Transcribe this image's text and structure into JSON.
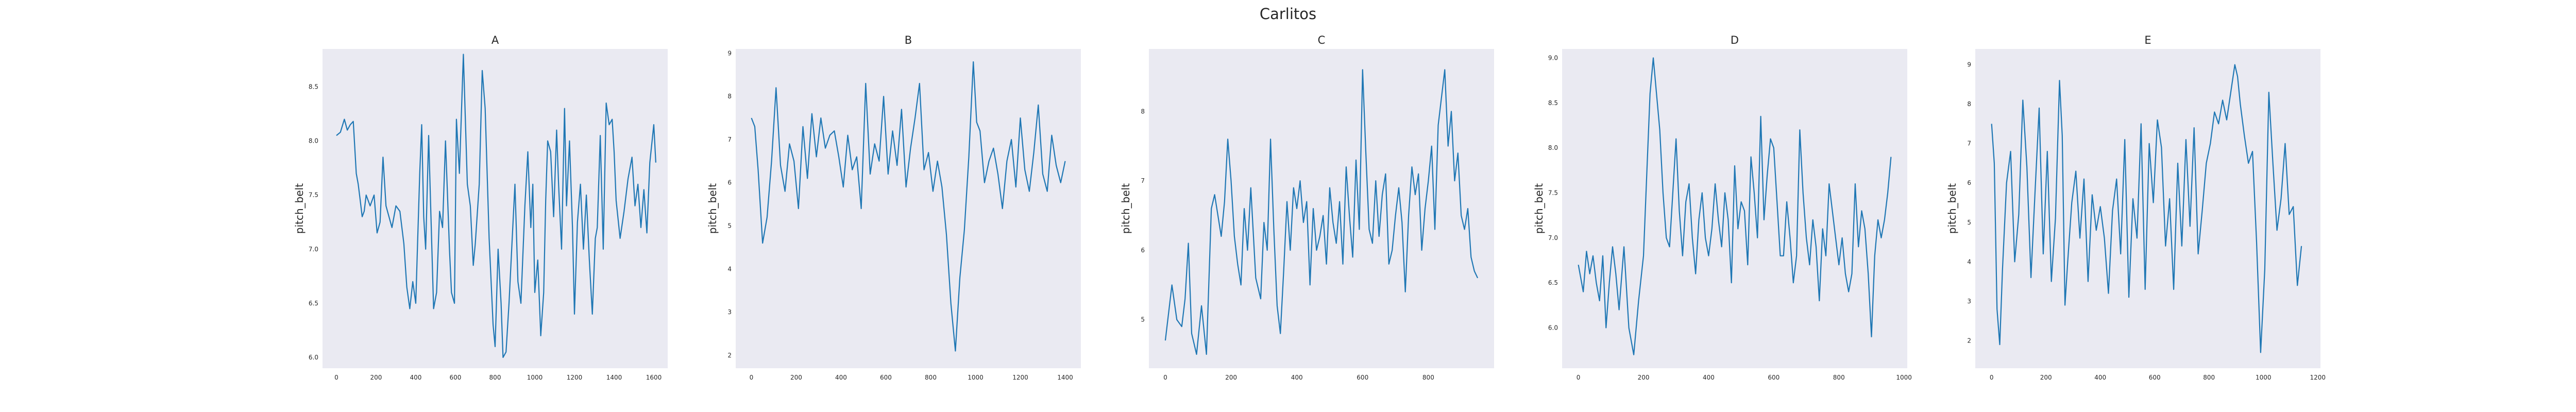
{
  "figure": {
    "title": "Carlitos"
  },
  "style": {
    "axes_bg": "#eaeaf2",
    "line_color": "#1f77b4",
    "text_color": "#262626"
  },
  "chart_data": [
    {
      "type": "line",
      "title": "A",
      "xlabel": "",
      "ylabel": "pitch_belt",
      "xlim": [
        -70,
        1670
      ],
      "ylim": [
        5.9,
        8.85
      ],
      "xticks": [
        0,
        200,
        400,
        600,
        800,
        1000,
        1200,
        1400,
        1600
      ],
      "yticks": [
        6.0,
        6.5,
        7.0,
        7.5,
        8.0,
        8.5
      ],
      "grid": false,
      "legend": "none",
      "series": [
        {
          "x": [
            0,
            20,
            40,
            55,
            70,
            85,
            100,
            110,
            120,
            130,
            140,
            150,
            170,
            190,
            205,
            220,
            235,
            250,
            265,
            280,
            300,
            320,
            340,
            355,
            370,
            385,
            400,
            410,
            420,
            430,
            440,
            450,
            465,
            475,
            490,
            505,
            520,
            535,
            550,
            560,
            570,
            580,
            595,
            605,
            620,
            640,
            660,
            675,
            690,
            700,
            720,
            735,
            750,
            770,
            790,
            800,
            815,
            830,
            840,
            855,
            870,
            885,
            900,
            915,
            930,
            950,
            965,
            980,
            990,
            1000,
            1015,
            1030,
            1045,
            1055,
            1065,
            1080,
            1095,
            1110,
            1120,
            1135,
            1150,
            1160,
            1175,
            1190,
            1200,
            1215,
            1230,
            1245,
            1260,
            1275,
            1290,
            1305,
            1315,
            1330,
            1345,
            1360,
            1375,
            1390,
            1400,
            1410,
            1430,
            1450,
            1470,
            1490,
            1505,
            1520,
            1535,
            1550,
            1565,
            1580,
            1600,
            1610
          ],
          "y": [
            8.05,
            8.08,
            8.2,
            8.1,
            8.15,
            8.18,
            7.7,
            7.6,
            7.45,
            7.3,
            7.35,
            7.5,
            7.4,
            7.5,
            7.15,
            7.25,
            7.85,
            7.4,
            7.3,
            7.2,
            7.4,
            7.35,
            7.05,
            6.65,
            6.45,
            6.7,
            6.5,
            7.1,
            7.7,
            8.15,
            7.3,
            7.0,
            8.05,
            7.4,
            6.45,
            6.6,
            7.35,
            7.2,
            8.0,
            7.5,
            7.0,
            6.6,
            6.5,
            8.2,
            7.7,
            8.8,
            7.6,
            7.4,
            6.85,
            7.05,
            7.6,
            8.65,
            8.3,
            7.1,
            6.3,
            6.1,
            7.0,
            6.5,
            6.0,
            6.05,
            6.5,
            7.05,
            7.6,
            6.7,
            6.5,
            7.4,
            7.9,
            7.2,
            7.6,
            6.6,
            6.9,
            6.2,
            6.6,
            7.45,
            8.0,
            7.9,
            7.3,
            8.1,
            7.6,
            7.0,
            8.3,
            7.4,
            8.0,
            7.2,
            6.4,
            7.25,
            7.6,
            7.0,
            7.5,
            6.9,
            6.4,
            7.1,
            7.2,
            8.05,
            7.0,
            8.35,
            8.15,
            8.2,
            7.9,
            7.45,
            7.1,
            7.35,
            7.65,
            7.85,
            7.4,
            7.6,
            7.2,
            7.55,
            7.15,
            7.8,
            8.15,
            7.8
          ]
        }
      ]
    },
    {
      "type": "line",
      "title": "B",
      "xlabel": "",
      "ylabel": "pitch_belt",
      "xlim": [
        -70,
        1470
      ],
      "ylim": [
        1.7,
        9.1
      ],
      "xticks": [
        0,
        200,
        400,
        600,
        800,
        1000,
        1200,
        1400
      ],
      "yticks": [
        2,
        3,
        4,
        5,
        6,
        7,
        8,
        9
      ],
      "grid": false,
      "legend": "none",
      "series": [
        {
          "x": [
            0,
            15,
            30,
            50,
            70,
            90,
            110,
            130,
            150,
            170,
            190,
            210,
            230,
            250,
            270,
            290,
            310,
            330,
            350,
            370,
            390,
            410,
            430,
            450,
            470,
            490,
            510,
            530,
            550,
            570,
            590,
            610,
            630,
            650,
            670,
            690,
            710,
            730,
            750,
            770,
            790,
            810,
            830,
            850,
            870,
            890,
            910,
            930,
            950,
            970,
            990,
            1005,
            1020,
            1040,
            1060,
            1080,
            1100,
            1120,
            1140,
            1160,
            1180,
            1200,
            1220,
            1240,
            1260,
            1280,
            1300,
            1320,
            1340,
            1360,
            1380,
            1400
          ],
          "y": [
            7.5,
            7.3,
            6.3,
            4.6,
            5.2,
            6.5,
            8.2,
            6.4,
            5.8,
            6.9,
            6.5,
            5.4,
            7.3,
            6.1,
            7.6,
            6.6,
            7.5,
            6.8,
            7.1,
            7.2,
            6.6,
            5.9,
            7.1,
            6.3,
            6.6,
            5.4,
            8.3,
            6.2,
            6.9,
            6.5,
            8.0,
            6.2,
            7.2,
            6.4,
            7.7,
            5.9,
            6.8,
            7.5,
            8.3,
            6.3,
            6.7,
            5.8,
            6.5,
            5.9,
            4.8,
            3.2,
            2.1,
            3.8,
            4.9,
            6.6,
            8.8,
            7.4,
            7.2,
            6.0,
            6.5,
            6.8,
            6.2,
            5.4,
            6.5,
            7.0,
            5.9,
            7.5,
            6.3,
            5.8,
            6.7,
            7.8,
            6.2,
            5.8,
            7.1,
            6.4,
            6.0,
            6.5
          ]
        }
      ]
    },
    {
      "type": "line",
      "title": "C",
      "xlabel": "",
      "ylabel": "pitch_belt",
      "xlim": [
        -50,
        1000
      ],
      "ylim": [
        4.3,
        8.9
      ],
      "xticks": [
        0,
        200,
        400,
        600,
        800
      ],
      "yticks": [
        5,
        6,
        7,
        8
      ],
      "grid": false,
      "legend": "none",
      "series": [
        {
          "x": [
            0,
            10,
            20,
            35,
            50,
            60,
            70,
            80,
            95,
            110,
            125,
            140,
            150,
            160,
            170,
            180,
            190,
            200,
            210,
            220,
            230,
            240,
            250,
            260,
            275,
            290,
            300,
            310,
            320,
            330,
            340,
            350,
            360,
            370,
            380,
            390,
            400,
            410,
            420,
            430,
            440,
            450,
            460,
            470,
            480,
            490,
            500,
            510,
            520,
            530,
            540,
            550,
            560,
            570,
            580,
            590,
            600,
            610,
            620,
            630,
            640,
            650,
            660,
            670,
            680,
            690,
            700,
            710,
            720,
            730,
            740,
            750,
            760,
            770,
            780,
            790,
            800,
            810,
            820,
            830,
            840,
            850,
            860,
            870,
            880,
            890,
            900,
            910,
            920,
            930,
            940,
            950
          ],
          "y": [
            4.7,
            5.1,
            5.5,
            5.0,
            4.9,
            5.3,
            6.1,
            4.8,
            4.5,
            5.2,
            4.5,
            6.6,
            6.8,
            6.5,
            6.2,
            6.7,
            7.6,
            7.0,
            6.2,
            5.8,
            5.5,
            6.6,
            6.0,
            6.9,
            5.6,
            5.3,
            6.4,
            6.0,
            7.6,
            6.3,
            5.2,
            4.8,
            5.7,
            6.7,
            6.0,
            6.9,
            6.6,
            7.0,
            6.4,
            6.7,
            5.5,
            6.6,
            6.0,
            6.2,
            6.5,
            5.8,
            6.9,
            6.4,
            6.1,
            6.7,
            5.8,
            7.2,
            6.5,
            5.9,
            7.3,
            6.3,
            8.6,
            7.4,
            6.3,
            6.1,
            7.0,
            6.2,
            6.8,
            7.1,
            5.8,
            6.0,
            6.5,
            6.9,
            6.4,
            5.4,
            6.5,
            7.2,
            6.8,
            7.1,
            6.0,
            6.6,
            7.0,
            7.5,
            6.3,
            7.8,
            8.2,
            8.6,
            7.5,
            8.0,
            7.0,
            7.4,
            6.5,
            6.3,
            6.6,
            5.9,
            5.7,
            5.6
          ]
        }
      ]
    },
    {
      "type": "line",
      "title": "D",
      "xlabel": "",
      "ylabel": "pitch_belt",
      "xlim": [
        -50,
        1010
      ],
      "ylim": [
        5.55,
        9.1
      ],
      "xticks": [
        0,
        200,
        400,
        600,
        800,
        1000
      ],
      "yticks": [
        6.0,
        6.5,
        7.0,
        7.5,
        8.0,
        8.5,
        9.0
      ],
      "grid": false,
      "legend": "none",
      "series": [
        {
          "x": [
            0,
            15,
            25,
            35,
            45,
            55,
            65,
            75,
            85,
            95,
            105,
            115,
            125,
            140,
            155,
            170,
            185,
            200,
            210,
            220,
            230,
            240,
            250,
            260,
            270,
            280,
            290,
            300,
            310,
            320,
            330,
            340,
            350,
            360,
            370,
            380,
            390,
            400,
            410,
            420,
            430,
            440,
            450,
            460,
            470,
            480,
            490,
            500,
            510,
            520,
            530,
            540,
            550,
            560,
            570,
            580,
            590,
            600,
            610,
            620,
            630,
            640,
            650,
            660,
            670,
            680,
            690,
            700,
            710,
            720,
            730,
            740,
            750,
            760,
            770,
            780,
            790,
            800,
            810,
            820,
            830,
            840,
            850,
            860,
            870,
            880,
            890,
            900,
            910,
            920,
            930,
            940,
            950,
            960
          ],
          "y": [
            6.7,
            6.4,
            6.85,
            6.6,
            6.8,
            6.5,
            6.3,
            6.8,
            6.0,
            6.5,
            6.9,
            6.6,
            6.2,
            6.9,
            6.0,
            5.7,
            6.3,
            6.8,
            7.7,
            8.6,
            9.0,
            8.6,
            8.2,
            7.5,
            7.0,
            6.9,
            7.5,
            8.1,
            7.3,
            6.8,
            7.4,
            7.6,
            7.0,
            6.6,
            7.2,
            7.5,
            7.0,
            6.8,
            7.1,
            7.6,
            7.2,
            6.9,
            7.5,
            7.2,
            6.5,
            7.8,
            7.1,
            7.4,
            7.3,
            6.7,
            7.9,
            7.5,
            7.0,
            8.35,
            7.2,
            7.7,
            8.1,
            8.0,
            7.4,
            6.8,
            6.8,
            7.4,
            7.0,
            6.5,
            6.8,
            8.2,
            7.5,
            7.0,
            6.7,
            7.2,
            6.9,
            6.3,
            7.1,
            6.8,
            7.6,
            7.3,
            7.0,
            6.7,
            7.0,
            6.6,
            6.4,
            6.6,
            7.6,
            6.9,
            7.3,
            7.1,
            6.6,
            5.9,
            6.8,
            7.2,
            7.0,
            7.2,
            7.5,
            7.9
          ]
        }
      ]
    },
    {
      "type": "line",
      "title": "E",
      "xlabel": "",
      "ylabel": "pitch_belt",
      "xlim": [
        -60,
        1210
      ],
      "ylim": [
        1.3,
        9.4
      ],
      "xticks": [
        0,
        200,
        400,
        600,
        800,
        1000,
        1200
      ],
      "yticks": [
        2,
        3,
        4,
        5,
        6,
        7,
        8,
        9
      ],
      "grid": false,
      "legend": "none",
      "series": [
        {
          "x": [
            0,
            10,
            20,
            30,
            40,
            55,
            70,
            85,
            100,
            115,
            130,
            145,
            160,
            175,
            190,
            205,
            220,
            235,
            250,
            260,
            270,
            280,
            295,
            310,
            325,
            340,
            355,
            370,
            385,
            400,
            415,
            430,
            445,
            460,
            475,
            490,
            505,
            520,
            535,
            550,
            565,
            580,
            595,
            610,
            625,
            640,
            655,
            670,
            685,
            700,
            715,
            730,
            745,
            760,
            775,
            790,
            805,
            820,
            835,
            850,
            865,
            880,
            895,
            905,
            915,
            930,
            945,
            960,
            975,
            990,
            1005,
            1020,
            1035,
            1050,
            1065,
            1080,
            1095,
            1110,
            1125,
            1140
          ],
          "y": [
            7.5,
            6.5,
            2.8,
            1.9,
            3.8,
            6.0,
            6.8,
            4.0,
            5.2,
            8.1,
            6.4,
            3.6,
            5.8,
            7.9,
            4.2,
            6.8,
            3.5,
            5.1,
            8.6,
            7.2,
            2.9,
            4.0,
            5.5,
            6.3,
            4.6,
            6.1,
            3.5,
            5.7,
            4.8,
            5.4,
            4.6,
            3.2,
            5.3,
            6.1,
            4.2,
            7.1,
            3.1,
            5.6,
            4.6,
            7.5,
            3.3,
            7.0,
            5.5,
            7.6,
            6.9,
            4.4,
            5.6,
            3.3,
            6.5,
            4.4,
            7.1,
            4.9,
            7.4,
            4.2,
            5.3,
            6.5,
            7.0,
            7.8,
            7.5,
            8.1,
            7.6,
            8.3,
            9.0,
            8.7,
            8.0,
            7.2,
            6.5,
            6.8,
            4.5,
            1.7,
            3.8,
            8.3,
            6.5,
            4.8,
            5.6,
            7.0,
            5.2,
            5.4,
            3.4,
            4.4
          ]
        }
      ]
    }
  ]
}
